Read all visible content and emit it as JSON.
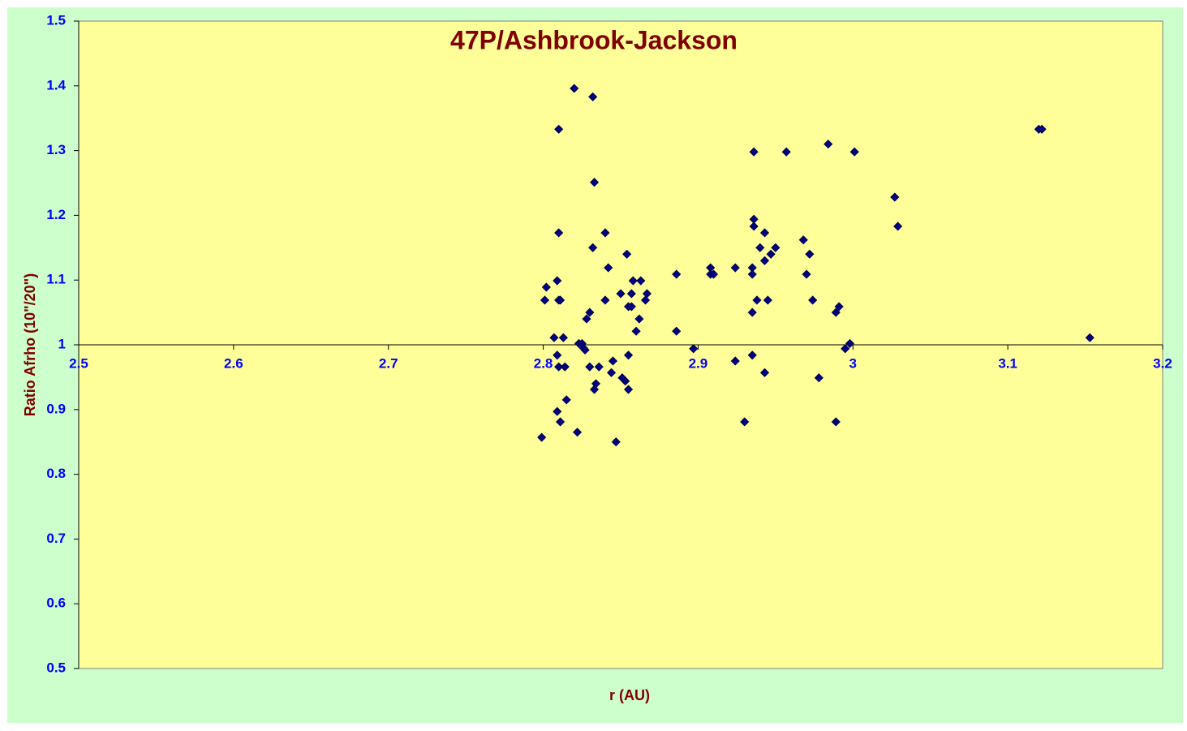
{
  "chart_data": {
    "type": "scatter",
    "title": "47P/Ashbrook-Jackson",
    "x_label": "r (AU)",
    "y_label": "Ratio Afrho (10\"/20\")",
    "xlim": [
      2.5,
      3.2
    ],
    "xticks": [
      2.5,
      2.6,
      2.7,
      2.8,
      2.9,
      3,
      3.1,
      3.2
    ],
    "ylim": [
      0.5,
      1.5
    ],
    "yticks": [
      0.5,
      0.6,
      0.7,
      0.8,
      0.9,
      1,
      1.1,
      1.2,
      1.3,
      1.4,
      1.5
    ],
    "x_axis_at": 1,
    "series": [
      {
        "color": "#000080",
        "x": [
          2.82,
          2.832,
          2.81,
          2.833,
          2.81,
          2.84,
          2.832,
          2.854,
          2.842,
          2.802,
          2.809,
          2.858,
          2.863,
          2.801,
          2.81,
          2.811,
          2.84,
          2.85,
          2.857,
          2.867,
          2.866,
          2.855,
          2.857,
          2.83,
          2.828,
          2.862,
          2.86,
          2.807,
          2.813,
          2.823,
          2.825,
          2.826,
          2.827,
          2.809,
          2.855,
          2.845,
          2.81,
          2.814,
          2.83,
          2.836,
          2.844,
          2.851,
          2.853,
          2.834,
          2.833,
          2.855,
          2.815,
          2.809,
          2.811,
          2.822,
          2.799,
          2.847,
          2.886,
          2.886,
          2.897,
          2.908,
          2.908,
          2.91,
          2.924,
          2.924,
          2.93,
          2.935,
          2.935,
          2.935,
          2.935,
          2.936,
          2.936,
          2.936,
          2.938,
          2.94,
          2.943,
          2.943,
          2.947,
          2.945,
          2.943,
          2.95,
          2.957,
          2.968,
          2.972,
          2.97,
          2.974,
          2.978,
          2.984,
          2.989,
          2.991,
          2.989,
          2.995,
          2.998,
          3.001,
          3.027,
          3.029,
          3.12,
          3.122,
          3.153
        ],
        "values": [
          1.396,
          1.383,
          1.333,
          1.251,
          1.173,
          1.173,
          1.15,
          1.14,
          1.119,
          1.089,
          1.099,
          1.099,
          1.099,
          1.069,
          1.069,
          1.069,
          1.069,
          1.079,
          1.079,
          1.079,
          1.069,
          1.059,
          1.059,
          1.05,
          1.04,
          1.04,
          1.021,
          1.011,
          1.011,
          1.002,
          1.002,
          0.995,
          0.992,
          0.984,
          0.984,
          0.975,
          0.966,
          0.966,
          0.966,
          0.966,
          0.957,
          0.949,
          0.944,
          0.94,
          0.931,
          0.931,
          0.915,
          0.897,
          0.881,
          0.865,
          0.857,
          0.85,
          1.109,
          1.021,
          0.994,
          1.119,
          1.109,
          1.109,
          1.119,
          0.975,
          0.881,
          1.119,
          1.109,
          1.05,
          0.984,
          1.298,
          1.194,
          1.183,
          1.069,
          1.15,
          1.173,
          1.13,
          1.14,
          1.069,
          0.957,
          1.15,
          1.298,
          1.162,
          1.14,
          1.109,
          1.069,
          0.949,
          1.31,
          1.05,
          1.059,
          0.881,
          0.994,
          1.002,
          1.298,
          1.228,
          1.183,
          1.333,
          1.333,
          1.011
        ]
      }
    ]
  }
}
